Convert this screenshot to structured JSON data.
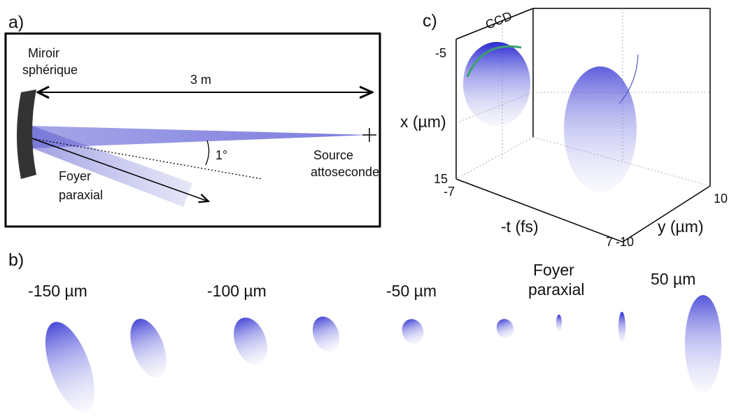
{
  "panel_a": {
    "label": "a)",
    "mirror": [
      "Miroir",
      "sphérique"
    ],
    "distance": "3 m",
    "angle": "1°",
    "source": [
      "Source",
      "attoseconde"
    ],
    "focus": [
      "Foyer",
      "paraxial"
    ]
  },
  "panel_b": {
    "label": "b)",
    "positions": [
      "-150 µm",
      "-100 µm",
      "-50 µm"
    ],
    "focus": [
      "Foyer",
      "paraxial"
    ],
    "last": "50 µm"
  },
  "panel_c": {
    "label": "c)",
    "detector": "CCD",
    "x_axis": {
      "label": "x (µm)",
      "top": "-5",
      "bottom": "15"
    },
    "t_axis": {
      "label": "-t (fs)",
      "start": "-7",
      "end": "7"
    },
    "y_axis": {
      "label": "y (µm)",
      "start": "-10",
      "end": "10"
    }
  }
}
